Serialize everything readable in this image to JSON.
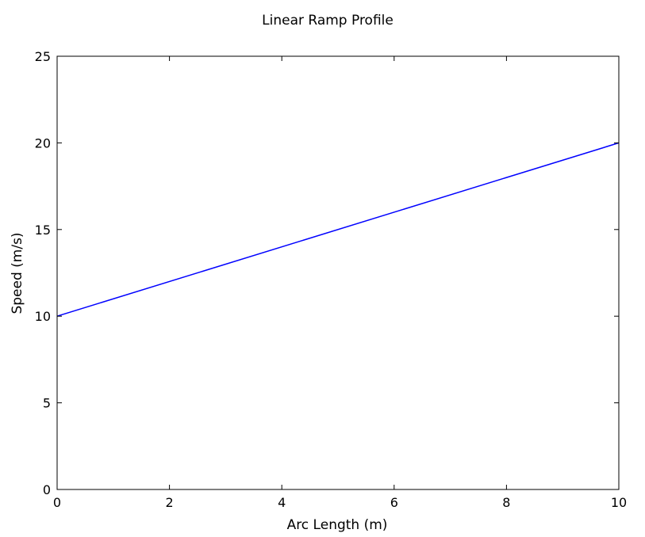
{
  "chart_data": {
    "type": "line",
    "title": "Linear Ramp Profile",
    "xlabel": "Arc Length (m)",
    "ylabel": "Speed (m/s)",
    "xlim": [
      0,
      10
    ],
    "ylim": [
      0,
      25
    ],
    "xticks": [
      0,
      2,
      4,
      6,
      8,
      10
    ],
    "yticks": [
      0,
      5,
      10,
      15,
      20,
      25
    ],
    "grid": false,
    "series": [
      {
        "x": [
          0,
          10
        ],
        "y": [
          10,
          20
        ],
        "color": "#0000ff"
      }
    ]
  }
}
